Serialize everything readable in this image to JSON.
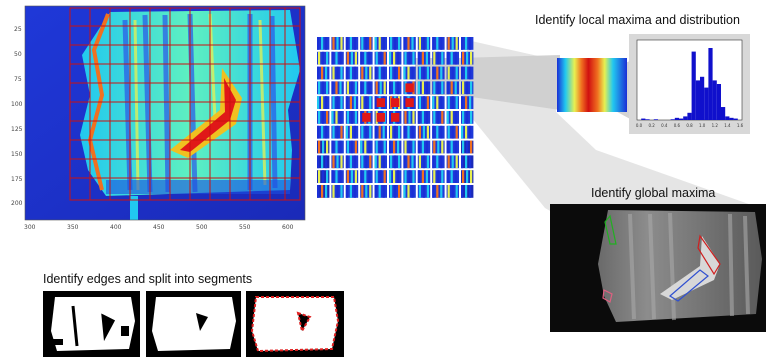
{
  "captions": {
    "local_maxima": "Identify local maxima and distribution",
    "global_maxima": "Identify global  maxima",
    "edges": "Identify edges and split into segments"
  },
  "heatmap": {
    "x_ticks": [
      "300",
      "350",
      "400",
      "450",
      "500",
      "550",
      "600"
    ],
    "y_ticks": [
      "25",
      "50",
      "75",
      "100",
      "125",
      "150",
      "175",
      "200"
    ]
  },
  "histogram": {
    "x_ticks": [
      "0.0",
      "0.2",
      "0.4",
      "0.6",
      "0.8",
      "1.0",
      "1.2",
      "1.4",
      "1.6"
    ],
    "bars": [
      0.02,
      0.01,
      0.0,
      0.01,
      0.0,
      0.0,
      0.0,
      0.01,
      0.03,
      0.02,
      0.05,
      0.1,
      0.95,
      0.55,
      0.6,
      0.45,
      1.0,
      0.55,
      0.5,
      0.18,
      0.05,
      0.03,
      0.02
    ]
  },
  "colors": {
    "grid_red": "#cc1111",
    "jet_blue": "#1a2fd6",
    "jet_cyan": "#21c8f0",
    "hist_bar": "#1010cc",
    "connector": "#b0b0b0"
  }
}
